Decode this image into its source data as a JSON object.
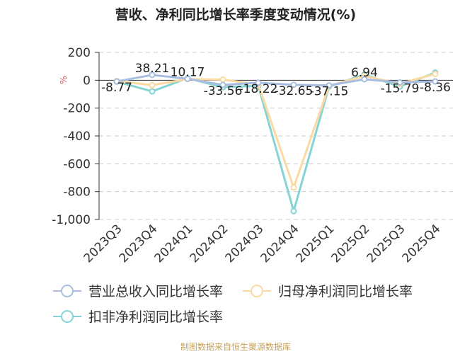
{
  "chart_data": {
    "type": "line",
    "title": "营收、净利同比增长率季度变动情况(%)",
    "xlabel": "",
    "ylabel": "%",
    "ylim": [
      -1000,
      200
    ],
    "yticks": [
      200,
      0,
      -200,
      -400,
      -600,
      -800,
      -1000
    ],
    "ytick_labels": [
      "200",
      "0",
      "-200",
      "-400",
      "-600",
      "-800",
      "-1,000"
    ],
    "grid": true,
    "legend_position": "bottom",
    "categories": [
      "2023Q3",
      "2023Q4",
      "2024Q1",
      "2024Q2",
      "2024Q3",
      "2024Q4",
      "2025Q1",
      "2025Q2",
      "2025Q3",
      "2025Q4"
    ],
    "series": [
      {
        "name": "营业总收入同比增长率",
        "color": "#a8bde0",
        "values": [
          -8.77,
          38.21,
          10.17,
          -33.56,
          -18.22,
          -32.65,
          -37.15,
          6.94,
          -15.79,
          -8.36
        ],
        "data_labels": [
          "-8.77",
          "38.21",
          "10.17",
          "-33.56",
          "-18.22",
          "-32.65",
          "-37.15",
          "6.94",
          "-15.79",
          "-8.36"
        ]
      },
      {
        "name": "归母净利润同比增长率",
        "color": "#fbd9a3",
        "values": [
          -5,
          -35,
          8,
          5,
          -30,
          -770,
          -40,
          30,
          -25,
          45
        ]
      },
      {
        "name": "扣非净利润同比增长率",
        "color": "#86d3d5",
        "values": [
          -10,
          -80,
          15,
          -50,
          -40,
          -940,
          -45,
          40,
          -45,
          55
        ]
      }
    ],
    "source": "制图数据来自恒生聚源数据库"
  }
}
